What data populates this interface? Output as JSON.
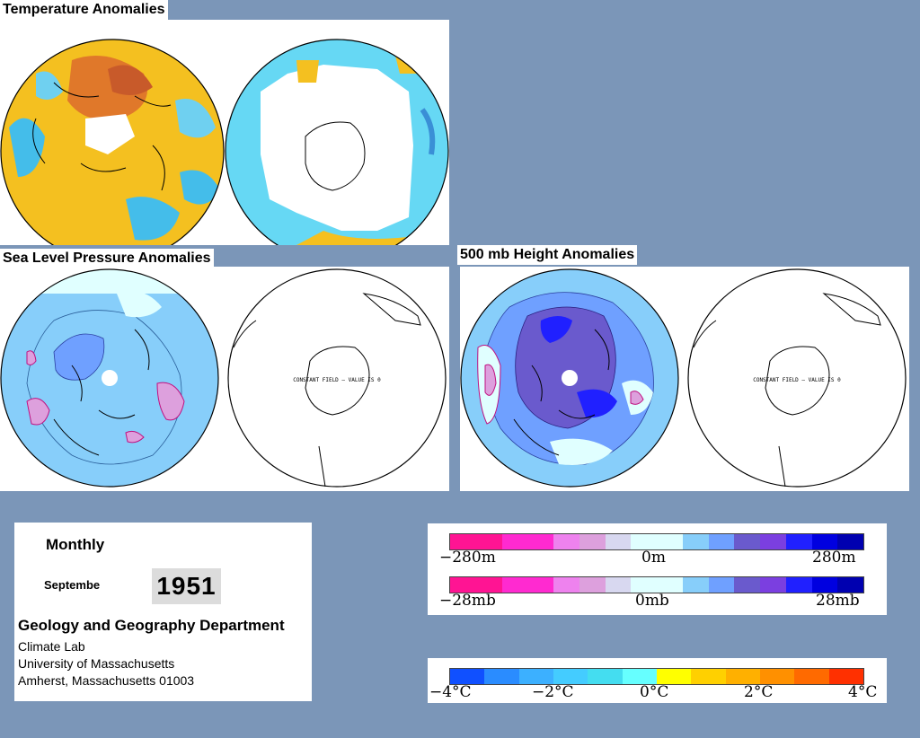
{
  "titles": {
    "temperature": "Temperature Anomalies",
    "slp": "Sea Level Pressure Anomalies",
    "height500": "500 mb Height Anomalies"
  },
  "constant_field_text": "CONSTANT FIELD – VALUE IS 0",
  "info": {
    "period": "Monthly",
    "month": "Septembe",
    "year": "1951",
    "department": "Geology and Geography Department",
    "address_lines": [
      "Climate Lab",
      "University of Massachusetts",
      "Amherst, Massachusetts 01003"
    ]
  },
  "legend_height": {
    "labels": [
      "−280m",
      "0m",
      "280m"
    ],
    "colors": [
      "#ff1493",
      "#ff1493",
      "#ff2ad0",
      "#ff2ad0",
      "#ee82ee",
      "#dda0dd",
      "#d8d8f0",
      "#e0ffff",
      "#e0ffff",
      "#87cefa",
      "#6fa0ff",
      "#6a5acd",
      "#7b3fe0",
      "#2020ff",
      "#0000e0",
      "#0000b0"
    ]
  },
  "legend_pressure": {
    "labels": [
      "−28mb",
      "0mb",
      "28mb"
    ],
    "colors": [
      "#ff1493",
      "#ff1493",
      "#ff2ad0",
      "#ff2ad0",
      "#ee82ee",
      "#dda0dd",
      "#d8d8f0",
      "#e0ffff",
      "#e0ffff",
      "#87cefa",
      "#6fa0ff",
      "#6a5acd",
      "#7b3fe0",
      "#2020ff",
      "#0000e0",
      "#0000b0"
    ]
  },
  "legend_temperature": {
    "labels": [
      "−4°C",
      "−2°C",
      "0°C",
      "2°C",
      "4°C"
    ],
    "colors": [
      "#1050ff",
      "#2a8cff",
      "#3cb0ff",
      "#44ccff",
      "#44ddf0",
      "#66ffff",
      "#ffff00",
      "#ffd000",
      "#ffb000",
      "#ff9000",
      "#ff6a00",
      "#ff3000"
    ]
  }
}
